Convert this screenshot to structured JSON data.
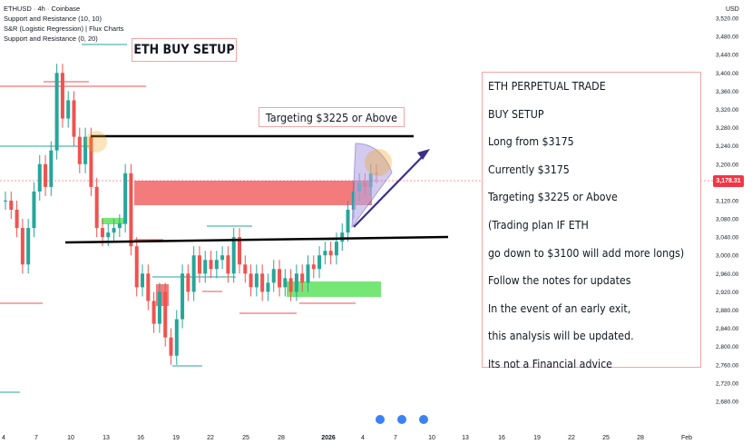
{
  "header": {
    "symbol_line": "ETHUSD · 4h · Coinbase",
    "indicator_1": "Support and Resistance (10, 10)",
    "indicator_2": "S&R (Logistic Regression) | Flux Charts",
    "indicator_3": "Support and Resistance (0, 20)"
  },
  "annotations": {
    "setup_title": "ETH BUY SETUP",
    "target_label": "Targeting $3225 or Above"
  },
  "notes": [
    "ETH PERPETUAL TRADE",
    "BUY SETUP",
    "Long from $3175",
    "Currently $3175",
    "Targeting $3225 or Above",
    "(Trading plan IF ETH",
    "go down to $3100 will add more longs)",
    "Follow the notes for updates",
    "In the event of an early exit,",
    "this analysis will be updated.",
    "Its not a Financial advice"
  ],
  "price_tag": "3,178.31",
  "colors": {
    "up": "#26a69a",
    "down": "#ef5350",
    "resistance_zone": "#f26d6d",
    "support_zone": "#5ee35e",
    "arrow": "#3b2f8a",
    "target_cone": "#b6a8e6",
    "highlight_circle": "#f5a623"
  },
  "chart_data": {
    "type": "line",
    "symbol": "ETHUSD",
    "timeframe": "4h",
    "exchange": "Coinbase",
    "currency": "USD",
    "yticks": [
      "3,520.00",
      "3,480.00",
      "3,440.00",
      "3,400.00",
      "3,360.00",
      "3,320.00",
      "3,280.00",
      "3,240.00",
      "3,200.00",
      "3,160.00",
      "3,120.00",
      "3,080.00",
      "3,040.00",
      "3,000.00",
      "2,960.00",
      "2,920.00",
      "2,880.00",
      "2,840.00",
      "2,800.00",
      "2,760.00",
      "2,720.00",
      "2,680.00"
    ],
    "xticks": [
      "4",
      "7",
      "10",
      "13",
      "16",
      "19",
      "22",
      "25",
      "28",
      "2026",
      "4",
      "7",
      "10",
      "13",
      "16",
      "19",
      "22",
      "25",
      "28",
      "Feb"
    ],
    "ylabel": "USD",
    "ylim": [
      2660,
      3540
    ],
    "series": [
      {
        "values": [
          3120,
          3100,
          3060,
          2980,
          3060,
          3140,
          3200,
          3150,
          3230,
          3400,
          3300,
          3340,
          3260,
          3200,
          3260,
          3150,
          3060,
          3040,
          3050,
          3060,
          3070,
          3180,
          3020,
          2930,
          2960,
          2900,
          2850,
          2920,
          2820,
          2780,
          2860,
          2960,
          2920,
          3000,
          2960,
          2990,
          2970,
          2990,
          3000,
          2960,
          3040,
          2980,
          2960,
          2930,
          2960,
          2920,
          2940,
          2970,
          2930,
          2950,
          2920,
          2960,
          2940,
          2980,
          2970,
          3000,
          3010,
          3000,
          3030,
          3050,
          3100,
          3140,
          3160,
          3150,
          3180,
          3178
        ]
      }
    ],
    "levels": {
      "resistance": 3275,
      "support": 3040
    }
  }
}
